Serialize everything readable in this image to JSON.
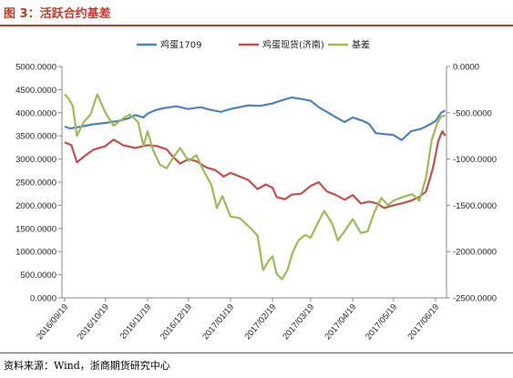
{
  "header": {
    "title": "图 3：活跃合约基差"
  },
  "footer": {
    "source": "资料来源：Wind，浙商期货研究中心"
  },
  "chart_data": {
    "type": "line",
    "title": "",
    "xlabel": "",
    "ylabel_left": "",
    "ylabel_right": "",
    "x_tick_labels": [
      "2016/09/19",
      "2016/10/19",
      "2016/11/19",
      "2016/12/19",
      "2017/01/19",
      "2017/02/19",
      "2017/03/19",
      "2017/04/19",
      "2017/05/19",
      "2017/06/19"
    ],
    "y_left": {
      "min": 0,
      "max": 5000,
      "ticks": [
        "0.0000",
        "500.0000",
        "1000.0000",
        "1500.0000",
        "2000.0000",
        "2500.0000",
        "3000.0000",
        "3500.0000",
        "4000.0000",
        "4500.0000",
        "5000.0000"
      ]
    },
    "y_right": {
      "min": -2500,
      "max": 0,
      "ticks": [
        "0.0000",
        "-500.0000",
        "-1000.0000",
        "-1500.0000",
        "-2000.0000",
        "-2500.0000"
      ]
    },
    "legend_position": "top-center",
    "series": [
      {
        "name": "鸡蛋1709",
        "axis": "left",
        "color": "#4F81BD",
        "points": [
          [
            "2016/09/19",
            3700
          ],
          [
            "2016/09/23",
            3660
          ],
          [
            "2016/10/01",
            3700
          ],
          [
            "2016/10/10",
            3750
          ],
          [
            "2016/10/19",
            3780
          ],
          [
            "2016/10/28",
            3820
          ],
          [
            "2016/11/05",
            3880
          ],
          [
            "2016/11/10",
            3950
          ],
          [
            "2016/11/16",
            3900
          ],
          [
            "2016/11/19",
            3980
          ],
          [
            "2016/11/25",
            4060
          ],
          [
            "2016/12/01",
            4100
          ],
          [
            "2016/12/10",
            4140
          ],
          [
            "2016/12/19",
            4080
          ],
          [
            "2016/12/28",
            4120
          ],
          [
            "2017/01/05",
            4060
          ],
          [
            "2017/01/12",
            4020
          ],
          [
            "2017/01/19",
            4080
          ],
          [
            "2017/02/01",
            4160
          ],
          [
            "2017/02/10",
            4150
          ],
          [
            "2017/02/19",
            4200
          ],
          [
            "2017/02/26",
            4270
          ],
          [
            "2017/03/05",
            4330
          ],
          [
            "2017/03/12",
            4300
          ],
          [
            "2017/03/19",
            4260
          ],
          [
            "2017/03/25",
            4120
          ],
          [
            "2017/04/01",
            4000
          ],
          [
            "2017/04/08",
            3880
          ],
          [
            "2017/04/13",
            3800
          ],
          [
            "2017/04/19",
            3900
          ],
          [
            "2017/04/26",
            3830
          ],
          [
            "2017/05/01",
            3760
          ],
          [
            "2017/05/06",
            3560
          ],
          [
            "2017/05/12",
            3540
          ],
          [
            "2017/05/19",
            3520
          ],
          [
            "2017/05/25",
            3410
          ],
          [
            "2017/06/01",
            3600
          ],
          [
            "2017/06/08",
            3650
          ],
          [
            "2017/06/13",
            3720
          ],
          [
            "2017/06/19",
            3820
          ],
          [
            "2017/06/23",
            4000
          ],
          [
            "2017/06/26",
            4050
          ]
        ]
      },
      {
        "name": "鸡蛋现货(济南)",
        "axis": "left",
        "color": "#C0504D",
        "points": [
          [
            "2016/09/19",
            3360
          ],
          [
            "2016/09/24",
            3300
          ],
          [
            "2016/09/28",
            2930
          ],
          [
            "2016/10/03",
            3050
          ],
          [
            "2016/10/10",
            3200
          ],
          [
            "2016/10/19",
            3280
          ],
          [
            "2016/10/25",
            3420
          ],
          [
            "2016/11/01",
            3300
          ],
          [
            "2016/11/10",
            3240
          ],
          [
            "2016/11/19",
            3300
          ],
          [
            "2016/11/26",
            3280
          ],
          [
            "2016/12/03",
            3210
          ],
          [
            "2016/12/08",
            3040
          ],
          [
            "2016/12/13",
            2900
          ],
          [
            "2016/12/19",
            3000
          ],
          [
            "2016/12/25",
            2950
          ],
          [
            "2017/01/01",
            2820
          ],
          [
            "2017/01/08",
            2760
          ],
          [
            "2017/01/14",
            2620
          ],
          [
            "2017/01/19",
            2700
          ],
          [
            "2017/01/26",
            2620
          ],
          [
            "2017/02/01",
            2550
          ],
          [
            "2017/02/08",
            2350
          ],
          [
            "2017/02/14",
            2450
          ],
          [
            "2017/02/19",
            2380
          ],
          [
            "2017/02/22",
            2180
          ],
          [
            "2017/02/28",
            2130
          ],
          [
            "2017/03/05",
            2230
          ],
          [
            "2017/03/12",
            2250
          ],
          [
            "2017/03/19",
            2420
          ],
          [
            "2017/03/25",
            2500
          ],
          [
            "2017/03/31",
            2300
          ],
          [
            "2017/04/06",
            2230
          ],
          [
            "2017/04/13",
            2120
          ],
          [
            "2017/04/19",
            2220
          ],
          [
            "2017/04/25",
            2040
          ],
          [
            "2017/05/01",
            2080
          ],
          [
            "2017/05/07",
            2040
          ],
          [
            "2017/05/12",
            1940
          ],
          [
            "2017/05/19",
            2000
          ],
          [
            "2017/05/26",
            2050
          ],
          [
            "2017/06/01",
            2100
          ],
          [
            "2017/06/07",
            2180
          ],
          [
            "2017/06/12",
            2300
          ],
          [
            "2017/06/17",
            2800
          ],
          [
            "2017/06/21",
            3400
          ],
          [
            "2017/06/24",
            3600
          ],
          [
            "2017/06/26",
            3500
          ]
        ]
      },
      {
        "name": "基差",
        "axis": "right",
        "color": "#9BBB59",
        "points": [
          [
            "2016/09/19",
            -300
          ],
          [
            "2016/09/22",
            -350
          ],
          [
            "2016/09/25",
            -430
          ],
          [
            "2016/09/28",
            -750
          ],
          [
            "2016/10/03",
            -600
          ],
          [
            "2016/10/08",
            -520
          ],
          [
            "2016/10/13",
            -300
          ],
          [
            "2016/10/19",
            -500
          ],
          [
            "2016/10/25",
            -640
          ],
          [
            "2016/11/01",
            -560
          ],
          [
            "2016/11/06",
            -520
          ],
          [
            "2016/11/12",
            -600
          ],
          [
            "2016/11/16",
            -860
          ],
          [
            "2016/11/19",
            -700
          ],
          [
            "2016/11/23",
            -900
          ],
          [
            "2016/11/28",
            -1060
          ],
          [
            "2016/12/03",
            -1100
          ],
          [
            "2016/12/08",
            -980
          ],
          [
            "2016/12/13",
            -880
          ],
          [
            "2016/12/19",
            -1020
          ],
          [
            "2016/12/25",
            -960
          ],
          [
            "2016/12/30",
            -1120
          ],
          [
            "2017/01/05",
            -1280
          ],
          [
            "2017/01/09",
            -1530
          ],
          [
            "2017/01/13",
            -1400
          ],
          [
            "2017/01/19",
            -1620
          ],
          [
            "2017/01/26",
            -1640
          ],
          [
            "2017/02/03",
            -1750
          ],
          [
            "2017/02/08",
            -1830
          ],
          [
            "2017/02/12",
            -2200
          ],
          [
            "2017/02/16",
            -2100
          ],
          [
            "2017/02/19",
            -2050
          ],
          [
            "2017/02/22",
            -2240
          ],
          [
            "2017/02/26",
            -2300
          ],
          [
            "2017/03/02",
            -2200
          ],
          [
            "2017/03/06",
            -2000
          ],
          [
            "2017/03/10",
            -1880
          ],
          [
            "2017/03/15",
            -1820
          ],
          [
            "2017/03/19",
            -1850
          ],
          [
            "2017/03/24",
            -1700
          ],
          [
            "2017/03/29",
            -1560
          ],
          [
            "2017/04/04",
            -1700
          ],
          [
            "2017/04/08",
            -1880
          ],
          [
            "2017/04/13",
            -1780
          ],
          [
            "2017/04/19",
            -1650
          ],
          [
            "2017/04/25",
            -1800
          ],
          [
            "2017/04/30",
            -1780
          ],
          [
            "2017/05/05",
            -1570
          ],
          [
            "2017/05/10",
            -1420
          ],
          [
            "2017/05/15",
            -1500
          ],
          [
            "2017/05/19",
            -1450
          ],
          [
            "2017/05/24",
            -1420
          ],
          [
            "2017/05/28",
            -1400
          ],
          [
            "2017/06/02",
            -1380
          ],
          [
            "2017/06/07",
            -1450
          ],
          [
            "2017/06/12",
            -1200
          ],
          [
            "2017/06/16",
            -800
          ],
          [
            "2017/06/20",
            -620
          ],
          [
            "2017/06/23",
            -540
          ],
          [
            "2017/06/26",
            -530
          ]
        ]
      }
    ]
  }
}
